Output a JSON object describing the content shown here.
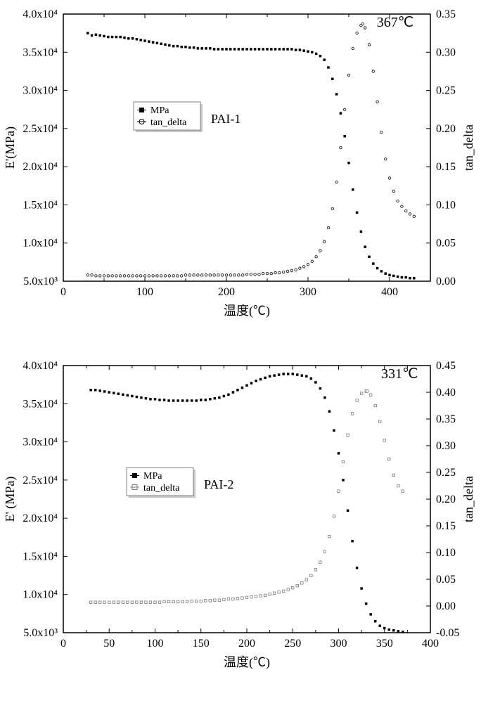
{
  "chart1": {
    "type": "dual-axis-line",
    "sample_label": "PAI-1",
    "peak_label": "367℃",
    "xlabel": "温度(℃)",
    "ylabel_left": "E'(MPa)",
    "ylabel_right": "tan_delta",
    "xlim": [
      0,
      450
    ],
    "xtick_step": 100,
    "xticks": [
      0,
      100,
      200,
      300,
      400
    ],
    "ylim_left": [
      5000,
      40000
    ],
    "yticks_left": [
      5000,
      10000,
      15000,
      20000,
      25000,
      30000,
      35000,
      40000
    ],
    "ytick_labels_left": [
      "5.0x10³",
      "1.0x10⁴",
      "1.5x10⁴",
      "2.0x10⁴",
      "2.5x10⁴",
      "3.0x10⁴",
      "3.5x10⁴",
      "4.0x10⁴"
    ],
    "ylim_right": [
      0.0,
      0.35
    ],
    "ytick_step_right": 0.05,
    "yticks_right": [
      0.0,
      0.05,
      0.1,
      0.15,
      0.2,
      0.25,
      0.3,
      0.35
    ],
    "legend": {
      "items": [
        {
          "marker": "filled-square",
          "label": "MPa",
          "color": "#000000"
        },
        {
          "marker": "open-circle",
          "label": "tan_delta",
          "color": "#000000"
        }
      ]
    },
    "background_color": "#ffffff",
    "axis_color": "#000000",
    "mpa_color": "#000000",
    "tan_color": "#000000",
    "marker_size": 3.5,
    "series_mpa": [
      [
        30,
        37500
      ],
      [
        35,
        37200
      ],
      [
        40,
        37300
      ],
      [
        45,
        37200
      ],
      [
        50,
        37100
      ],
      [
        55,
        37000
      ],
      [
        60,
        37000
      ],
      [
        65,
        37000
      ],
      [
        70,
        37000
      ],
      [
        75,
        36900
      ],
      [
        80,
        36800
      ],
      [
        85,
        36800
      ],
      [
        90,
        36700
      ],
      [
        95,
        36600
      ],
      [
        100,
        36500
      ],
      [
        105,
        36400
      ],
      [
        110,
        36300
      ],
      [
        115,
        36200
      ],
      [
        120,
        36100
      ],
      [
        125,
        36000
      ],
      [
        130,
        35900
      ],
      [
        135,
        35800
      ],
      [
        140,
        35800
      ],
      [
        145,
        35700
      ],
      [
        150,
        35700
      ],
      [
        155,
        35600
      ],
      [
        160,
        35600
      ],
      [
        165,
        35500
      ],
      [
        170,
        35500
      ],
      [
        175,
        35500
      ],
      [
        180,
        35500
      ],
      [
        185,
        35400
      ],
      [
        190,
        35400
      ],
      [
        195,
        35400
      ],
      [
        200,
        35400
      ],
      [
        205,
        35400
      ],
      [
        210,
        35400
      ],
      [
        215,
        35400
      ],
      [
        220,
        35400
      ],
      [
        225,
        35400
      ],
      [
        230,
        35400
      ],
      [
        235,
        35400
      ],
      [
        240,
        35400
      ],
      [
        245,
        35400
      ],
      [
        250,
        35400
      ],
      [
        255,
        35400
      ],
      [
        260,
        35400
      ],
      [
        265,
        35400
      ],
      [
        270,
        35400
      ],
      [
        275,
        35400
      ],
      [
        280,
        35400
      ],
      [
        285,
        35300
      ],
      [
        290,
        35300
      ],
      [
        295,
        35200
      ],
      [
        300,
        35100
      ],
      [
        305,
        35000
      ],
      [
        310,
        34800
      ],
      [
        315,
        34500
      ],
      [
        320,
        34000
      ],
      [
        325,
        33000
      ],
      [
        330,
        31500
      ],
      [
        335,
        29500
      ],
      [
        340,
        27000
      ],
      [
        345,
        24000
      ],
      [
        350,
        20500
      ],
      [
        355,
        17000
      ],
      [
        360,
        14000
      ],
      [
        365,
        11500
      ],
      [
        370,
        9500
      ],
      [
        375,
        8200
      ],
      [
        380,
        7300
      ],
      [
        385,
        6700
      ],
      [
        390,
        6300
      ],
      [
        395,
        6000
      ],
      [
        400,
        5800
      ],
      [
        405,
        5700
      ],
      [
        410,
        5600
      ],
      [
        415,
        5500
      ],
      [
        420,
        5500
      ],
      [
        425,
        5400
      ],
      [
        430,
        5400
      ]
    ],
    "series_tan": [
      [
        30,
        0.008
      ],
      [
        35,
        0.008
      ],
      [
        40,
        0.007
      ],
      [
        45,
        0.007
      ],
      [
        50,
        0.007
      ],
      [
        55,
        0.007
      ],
      [
        60,
        0.007
      ],
      [
        65,
        0.007
      ],
      [
        70,
        0.007
      ],
      [
        75,
        0.007
      ],
      [
        80,
        0.007
      ],
      [
        85,
        0.007
      ],
      [
        90,
        0.007
      ],
      [
        95,
        0.007
      ],
      [
        100,
        0.007
      ],
      [
        105,
        0.007
      ],
      [
        110,
        0.007
      ],
      [
        115,
        0.007
      ],
      [
        120,
        0.007
      ],
      [
        125,
        0.007
      ],
      [
        130,
        0.007
      ],
      [
        135,
        0.007
      ],
      [
        140,
        0.007
      ],
      [
        145,
        0.007
      ],
      [
        150,
        0.008
      ],
      [
        155,
        0.008
      ],
      [
        160,
        0.008
      ],
      [
        165,
        0.008
      ],
      [
        170,
        0.008
      ],
      [
        175,
        0.008
      ],
      [
        180,
        0.008
      ],
      [
        185,
        0.008
      ],
      [
        190,
        0.008
      ],
      [
        195,
        0.008
      ],
      [
        200,
        0.008
      ],
      [
        205,
        0.008
      ],
      [
        210,
        0.008
      ],
      [
        215,
        0.008
      ],
      [
        220,
        0.008
      ],
      [
        225,
        0.009
      ],
      [
        230,
        0.009
      ],
      [
        235,
        0.009
      ],
      [
        240,
        0.009
      ],
      [
        245,
        0.01
      ],
      [
        250,
        0.01
      ],
      [
        255,
        0.01
      ],
      [
        260,
        0.011
      ],
      [
        265,
        0.011
      ],
      [
        270,
        0.012
      ],
      [
        275,
        0.013
      ],
      [
        280,
        0.014
      ],
      [
        285,
        0.015
      ],
      [
        290,
        0.017
      ],
      [
        295,
        0.019
      ],
      [
        300,
        0.022
      ],
      [
        305,
        0.026
      ],
      [
        310,
        0.032
      ],
      [
        315,
        0.04
      ],
      [
        320,
        0.052
      ],
      [
        325,
        0.07
      ],
      [
        330,
        0.095
      ],
      [
        335,
        0.13
      ],
      [
        340,
        0.175
      ],
      [
        345,
        0.225
      ],
      [
        350,
        0.27
      ],
      [
        355,
        0.305
      ],
      [
        360,
        0.325
      ],
      [
        365,
        0.335
      ],
      [
        367,
        0.337
      ],
      [
        370,
        0.332
      ],
      [
        375,
        0.31
      ],
      [
        380,
        0.275
      ],
      [
        385,
        0.235
      ],
      [
        390,
        0.195
      ],
      [
        395,
        0.16
      ],
      [
        400,
        0.135
      ],
      [
        405,
        0.118
      ],
      [
        410,
        0.105
      ],
      [
        415,
        0.098
      ],
      [
        420,
        0.092
      ],
      [
        425,
        0.088
      ],
      [
        430,
        0.085
      ]
    ]
  },
  "chart2": {
    "type": "dual-axis-line",
    "sample_label": "PAI-2",
    "peak_label": "331℃",
    "xlabel": "温度(℃)",
    "ylabel_left": "E' (MPa)",
    "ylabel_right": "tan_delta",
    "xlim": [
      0,
      400
    ],
    "xtick_step": 50,
    "xticks": [
      0,
      50,
      100,
      150,
      200,
      250,
      300,
      350,
      400
    ],
    "ylim_left": [
      5000,
      40000
    ],
    "yticks_left": [
      5000,
      10000,
      15000,
      20000,
      25000,
      30000,
      35000,
      40000
    ],
    "ytick_labels_left": [
      "5.0x10³",
      "1.0x10⁴",
      "1.5x10⁴",
      "2.0x10⁴",
      "2.5x10⁴",
      "3.0x10⁴",
      "3.5x10⁴",
      "4.0x10⁴"
    ],
    "ylim_right": [
      -0.05,
      0.45
    ],
    "ytick_step_right": 0.05,
    "yticks_right": [
      -0.05,
      0.0,
      0.05,
      0.1,
      0.15,
      0.2,
      0.25,
      0.3,
      0.35,
      0.4,
      0.45
    ],
    "legend": {
      "items": [
        {
          "marker": "filled-square",
          "label": "MPa",
          "color": "#000000"
        },
        {
          "marker": "open-square",
          "label": "tan_delta",
          "color": "#7a7a7a"
        }
      ]
    },
    "background_color": "#ffffff",
    "axis_color": "#000000",
    "mpa_color": "#000000",
    "tan_color": "#7a7a7a",
    "marker_size": 3.5,
    "series_mpa": [
      [
        30,
        36800
      ],
      [
        35,
        36800
      ],
      [
        40,
        36700
      ],
      [
        45,
        36600
      ],
      [
        50,
        36500
      ],
      [
        55,
        36400
      ],
      [
        60,
        36300
      ],
      [
        65,
        36200
      ],
      [
        70,
        36100
      ],
      [
        75,
        36000
      ],
      [
        80,
        35900
      ],
      [
        85,
        35800
      ],
      [
        90,
        35700
      ],
      [
        95,
        35600
      ],
      [
        100,
        35600
      ],
      [
        105,
        35500
      ],
      [
        110,
        35500
      ],
      [
        115,
        35400
      ],
      [
        120,
        35400
      ],
      [
        125,
        35400
      ],
      [
        130,
        35400
      ],
      [
        135,
        35400
      ],
      [
        140,
        35400
      ],
      [
        145,
        35400
      ],
      [
        150,
        35500
      ],
      [
        155,
        35500
      ],
      [
        160,
        35600
      ],
      [
        165,
        35700
      ],
      [
        170,
        35800
      ],
      [
        175,
        36000
      ],
      [
        180,
        36200
      ],
      [
        185,
        36500
      ],
      [
        190,
        36800
      ],
      [
        195,
        37100
      ],
      [
        200,
        37400
      ],
      [
        205,
        37700
      ],
      [
        210,
        38000
      ],
      [
        215,
        38200
      ],
      [
        220,
        38400
      ],
      [
        225,
        38600
      ],
      [
        230,
        38700
      ],
      [
        235,
        38800
      ],
      [
        240,
        38900
      ],
      [
        245,
        38900
      ],
      [
        250,
        38900
      ],
      [
        255,
        38800
      ],
      [
        260,
        38700
      ],
      [
        265,
        38600
      ],
      [
        270,
        38300
      ],
      [
        275,
        37800
      ],
      [
        280,
        37000
      ],
      [
        285,
        35800
      ],
      [
        290,
        34000
      ],
      [
        295,
        31500
      ],
      [
        300,
        28500
      ],
      [
        305,
        25000
      ],
      [
        310,
        21000
      ],
      [
        315,
        17000
      ],
      [
        320,
        13500
      ],
      [
        325,
        10800
      ],
      [
        330,
        8800
      ],
      [
        335,
        7400
      ],
      [
        340,
        6500
      ],
      [
        345,
        5900
      ],
      [
        350,
        5600
      ],
      [
        355,
        5400
      ],
      [
        360,
        5300
      ],
      [
        365,
        5200
      ],
      [
        370,
        5100
      ]
    ],
    "series_tan": [
      [
        30,
        0.007
      ],
      [
        35,
        0.007
      ],
      [
        40,
        0.007
      ],
      [
        45,
        0.007
      ],
      [
        50,
        0.007
      ],
      [
        55,
        0.007
      ],
      [
        60,
        0.007
      ],
      [
        65,
        0.007
      ],
      [
        70,
        0.007
      ],
      [
        75,
        0.007
      ],
      [
        80,
        0.007
      ],
      [
        85,
        0.007
      ],
      [
        90,
        0.007
      ],
      [
        95,
        0.007
      ],
      [
        100,
        0.007
      ],
      [
        105,
        0.007
      ],
      [
        110,
        0.008
      ],
      [
        115,
        0.008
      ],
      [
        120,
        0.008
      ],
      [
        125,
        0.008
      ],
      [
        130,
        0.008
      ],
      [
        135,
        0.008
      ],
      [
        140,
        0.009
      ],
      [
        145,
        0.009
      ],
      [
        150,
        0.009
      ],
      [
        155,
        0.01
      ],
      [
        160,
        0.01
      ],
      [
        165,
        0.011
      ],
      [
        170,
        0.011
      ],
      [
        175,
        0.012
      ],
      [
        180,
        0.013
      ],
      [
        185,
        0.013
      ],
      [
        190,
        0.014
      ],
      [
        195,
        0.015
      ],
      [
        200,
        0.016
      ],
      [
        205,
        0.017
      ],
      [
        210,
        0.018
      ],
      [
        215,
        0.019
      ],
      [
        220,
        0.02
      ],
      [
        225,
        0.022
      ],
      [
        230,
        0.024
      ],
      [
        235,
        0.026
      ],
      [
        240,
        0.028
      ],
      [
        245,
        0.031
      ],
      [
        250,
        0.034
      ],
      [
        255,
        0.038
      ],
      [
        260,
        0.043
      ],
      [
        265,
        0.049
      ],
      [
        270,
        0.057
      ],
      [
        275,
        0.068
      ],
      [
        280,
        0.082
      ],
      [
        285,
        0.102
      ],
      [
        290,
        0.13
      ],
      [
        295,
        0.168
      ],
      [
        300,
        0.215
      ],
      [
        305,
        0.27
      ],
      [
        310,
        0.32
      ],
      [
        315,
        0.36
      ],
      [
        320,
        0.385
      ],
      [
        325,
        0.398
      ],
      [
        330,
        0.402
      ],
      [
        331,
        0.402
      ],
      [
        335,
        0.395
      ],
      [
        340,
        0.375
      ],
      [
        345,
        0.345
      ],
      [
        350,
        0.31
      ],
      [
        355,
        0.275
      ],
      [
        360,
        0.245
      ],
      [
        365,
        0.225
      ],
      [
        370,
        0.215
      ]
    ]
  }
}
